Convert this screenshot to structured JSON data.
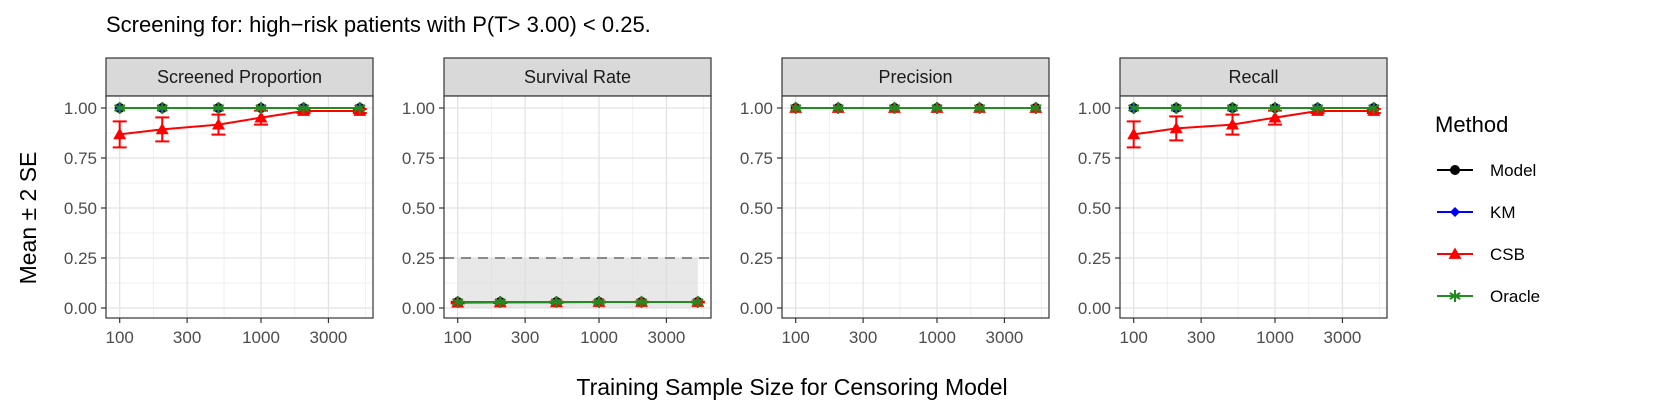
{
  "chart_data": {
    "type": "line",
    "title": "Screening for: high−risk patients with P(T> 3.00) < 0.25.",
    "xlabel": "Training Sample Size for Censoring Model",
    "ylabel": "Mean ± 2 SE",
    "x_scale": "log",
    "x": [
      100,
      200,
      500,
      1000,
      2000,
      5000
    ],
    "x_ticks": [
      100,
      300,
      1000,
      3000
    ],
    "x_tick_labels": [
      "100",
      "300",
      "1000",
      "3000"
    ],
    "xlim": [
      80,
      6200
    ],
    "ylim": [
      -0.05,
      1.06
    ],
    "y_ticks": [
      0,
      0.25,
      0.5,
      0.75,
      1.0
    ],
    "y_tick_labels": [
      "0.00",
      "0.25",
      "0.50",
      "0.75",
      "1.00"
    ],
    "grid": true,
    "legend": {
      "title": "Method",
      "position": "right",
      "entries": [
        {
          "name": "Model",
          "color": "#000000",
          "marker": "circle"
        },
        {
          "name": "KM",
          "color": "#0000ff",
          "marker": "diamond"
        },
        {
          "name": "CSB",
          "color": "#ff0000",
          "marker": "triangle"
        },
        {
          "name": "Oracle",
          "color": "#228b22",
          "marker": "asterisk"
        }
      ]
    },
    "panels": [
      {
        "title": "Screened Proportion",
        "series": [
          {
            "name": "Model",
            "values": [
              1,
              1,
              1,
              1,
              1,
              1
            ]
          },
          {
            "name": "KM",
            "values": [
              1,
              1,
              1,
              1,
              1,
              1
            ]
          },
          {
            "name": "CSB",
            "values": [
              0.868,
              0.893,
              0.917,
              0.952,
              0.985,
              0.985
            ],
            "se2": [
              0.065,
              0.06,
              0.05,
              0.035,
              0.01,
              0.01
            ]
          },
          {
            "name": "Oracle",
            "values": [
              1,
              1,
              1,
              1,
              1,
              1
            ]
          }
        ]
      },
      {
        "title": "Survival Rate",
        "reference_line": 0.25,
        "shaded_region": [
          0,
          0.25
        ],
        "series": [
          {
            "name": "Model",
            "values": [
              0.03,
              0.03,
              0.03,
              0.03,
              0.03,
              0.03
            ]
          },
          {
            "name": "KM",
            "values": [
              0.03,
              0.03,
              0.03,
              0.03,
              0.03,
              0.03
            ]
          },
          {
            "name": "CSB",
            "values": [
              0.027,
              0.028,
              0.029,
              0.03,
              0.03,
              0.03
            ],
            "se2": [
              0.004,
              0.003,
              0.003,
              0.002,
              0.002,
              0.002
            ]
          },
          {
            "name": "Oracle",
            "values": [
              0.03,
              0.03,
              0.03,
              0.03,
              0.03,
              0.03
            ]
          }
        ]
      },
      {
        "title": "Precision",
        "series": [
          {
            "name": "Model",
            "values": [
              1,
              1,
              1,
              1,
              1,
              1
            ]
          },
          {
            "name": "KM",
            "values": [
              1,
              1,
              1,
              1,
              1,
              1
            ]
          },
          {
            "name": "CSB",
            "values": [
              1,
              1,
              1,
              1,
              1,
              1
            ]
          },
          {
            "name": "Oracle",
            "values": [
              1,
              1,
              1,
              1,
              1,
              1
            ]
          }
        ]
      },
      {
        "title": "Recall",
        "series": [
          {
            "name": "Model",
            "values": [
              1,
              1,
              1,
              1,
              1,
              1
            ]
          },
          {
            "name": "KM",
            "values": [
              1,
              1,
              1,
              1,
              1,
              1
            ]
          },
          {
            "name": "CSB",
            "values": [
              0.868,
              0.898,
              0.917,
              0.952,
              0.985,
              0.985
            ],
            "se2": [
              0.065,
              0.06,
              0.05,
              0.035,
              0.01,
              0.01
            ]
          },
          {
            "name": "Oracle",
            "values": [
              1,
              1,
              1,
              1,
              1,
              1
            ]
          }
        ]
      }
    ]
  }
}
